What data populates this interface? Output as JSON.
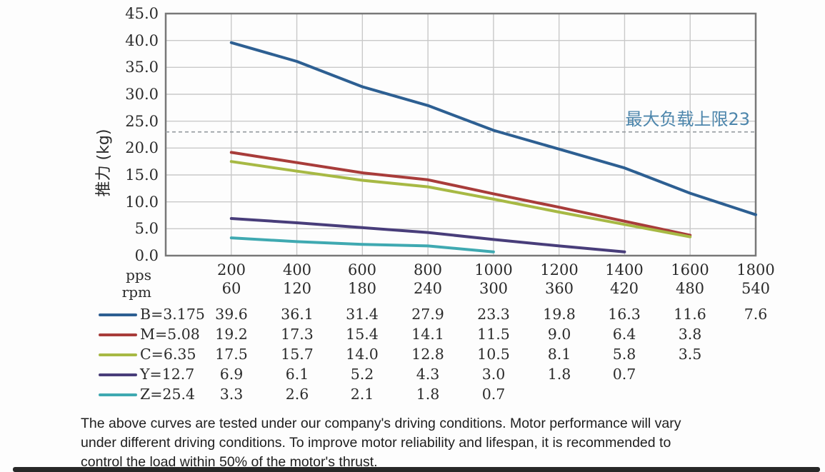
{
  "chart_data": {
    "type": "line",
    "title": "",
    "ylabel": "推力 (kg)",
    "x_unit_labels": [
      "pps",
      "rpm"
    ],
    "ylim": [
      0,
      45
    ],
    "xlim": [
      0,
      1800
    ],
    "y_tick_labels": [
      "45.0",
      "40.0",
      "35.0",
      "30.0",
      "25.0",
      "20.0",
      "15.0",
      "10.0",
      "5.0",
      "0.0"
    ],
    "x_pps": [
      200,
      400,
      600,
      800,
      1000,
      1200,
      1400,
      1600,
      1800
    ],
    "x_rpm": [
      60,
      120,
      180,
      240,
      300,
      360,
      420,
      480,
      540
    ],
    "grid": true,
    "grid_color": "#c9c9c9",
    "border_color": "#787878",
    "legend_position": "table-left",
    "limit_line": {
      "value": 23,
      "label": "最大负载上限23",
      "label_color": "#4d86ac",
      "line_color": "#9aa0a4",
      "style": "dashed"
    },
    "series": [
      {
        "name": "B=3.175",
        "color": "#2d5f92",
        "values": [
          39.6,
          36.1,
          31.4,
          27.9,
          23.3,
          19.8,
          16.3,
          11.6,
          7.6
        ]
      },
      {
        "name": "M=5.08",
        "color": "#a83c3a",
        "values": [
          19.2,
          17.3,
          15.4,
          14.1,
          11.5,
          9.0,
          6.4,
          3.8
        ]
      },
      {
        "name": "C=6.35",
        "color": "#a7b944",
        "values": [
          17.5,
          15.7,
          14.0,
          12.8,
          10.5,
          8.1,
          5.8,
          3.5
        ]
      },
      {
        "name": "Y=12.7",
        "color": "#483d7a",
        "values": [
          6.9,
          6.1,
          5.2,
          4.3,
          3.0,
          1.8,
          0.7
        ]
      },
      {
        "name": "Z=25.4",
        "color": "#3fa9b1",
        "values": [
          3.3,
          2.6,
          2.1,
          1.8,
          0.7
        ]
      }
    ]
  },
  "footnote": {
    "lines": [
      "The above curves are tested under our company's driving conditions. Motor performance will vary",
      "under different driving conditions. To improve motor reliability and lifespan, it is recommended to",
      "control the load within 50% of the motor's thrust."
    ]
  }
}
